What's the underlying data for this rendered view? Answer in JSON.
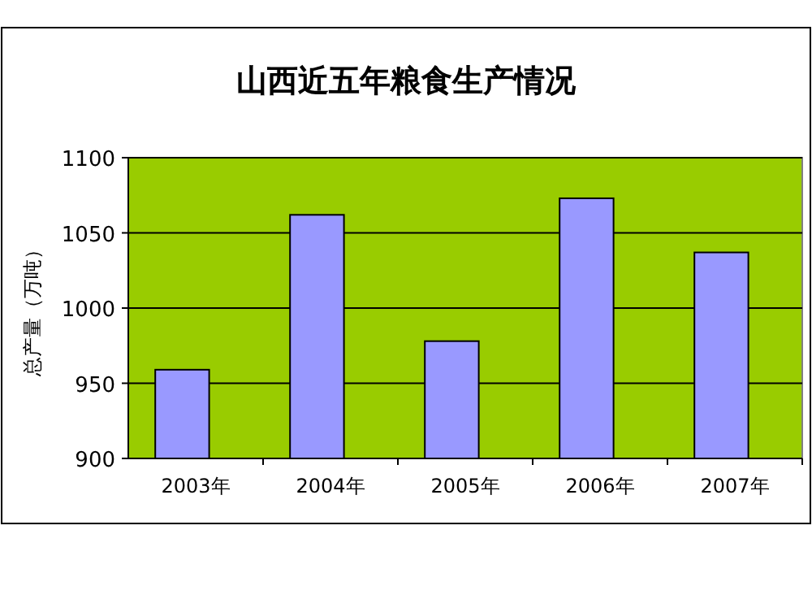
{
  "chart_data": {
    "type": "bar",
    "title": "山西近五年粮食生产情况",
    "ylabel": "总产量（万吨）",
    "categories": [
      "2003年",
      "2004年",
      "2005年",
      "2006年",
      "2007年"
    ],
    "values": [
      959,
      1062,
      978,
      1073,
      1037
    ],
    "color": "#9999ff",
    "ylim": [
      900,
      1100
    ],
    "yticks": [
      900,
      950,
      1000,
      1050,
      1100
    ],
    "grid": "y"
  }
}
